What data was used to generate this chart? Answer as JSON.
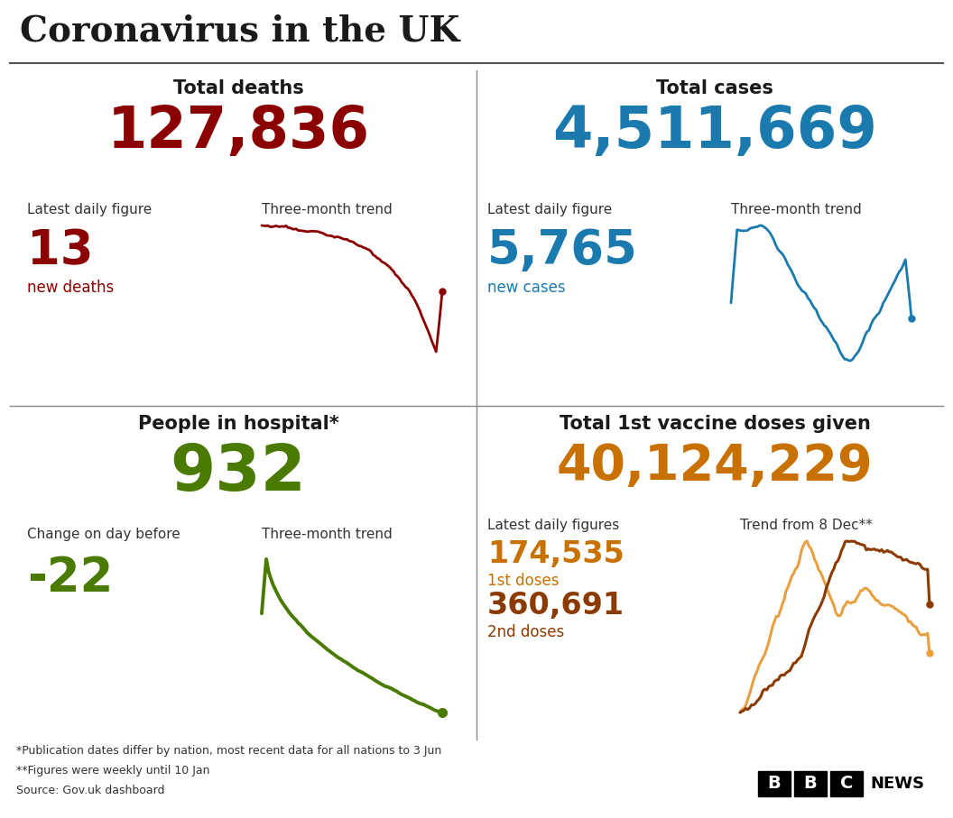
{
  "title": "Coronavirus in the UK",
  "bg_color": "#ffffff",
  "title_color": "#1a1a1a",
  "deaths_label": "Total deaths",
  "deaths_total": "127,836",
  "deaths_total_color": "#8b0000",
  "deaths_daily_label": "Latest daily figure",
  "deaths_daily_value": "13",
  "deaths_daily_sublabel": "new deaths",
  "deaths_daily_color": "#8b0000",
  "deaths_trend_label": "Three-month trend",
  "cases_label": "Total cases",
  "cases_total": "4,511,669",
  "cases_total_color": "#1a7aad",
  "cases_daily_label": "Latest daily figure",
  "cases_daily_value": "5,765",
  "cases_daily_sublabel": "new cases",
  "cases_daily_color": "#1a7aad",
  "cases_trend_label": "Three-month trend",
  "hosp_label": "People in hospital*",
  "hosp_total": "932",
  "hosp_total_color": "#4a7a00",
  "hosp_change_label": "Change on day before",
  "hosp_change_value": "-22",
  "hosp_change_color": "#4a7a00",
  "hosp_trend_label": "Three-month trend",
  "vacc_label": "Total 1st vaccine doses given",
  "vacc_total": "40,124,229",
  "vacc_total_color": "#c87000",
  "vacc_daily_label": "Latest daily figures",
  "vacc_1st_value": "174,535",
  "vacc_1st_sublabel": "1st doses",
  "vacc_1st_color": "#c87000",
  "vacc_2nd_value": "360,691",
  "vacc_2nd_sublabel": "2nd doses",
  "vacc_2nd_color": "#8b3a00",
  "vacc_trend_label": "Trend from 8 Dec**",
  "footnote1": "*Publication dates differ by nation, most recent data for all nations to 3 Jun",
  "footnote2": "**Figures were weekly until 10 Jan",
  "footnote3": "Source: Gov.uk dashboard",
  "line_color_deaths": "#8b0000",
  "line_color_cases": "#1a7aad",
  "line_color_hosp": "#4a7a00",
  "line_color_vacc1": "#e8a040",
  "line_color_vacc2": "#8b3a00",
  "divider_color": "#888888",
  "title_rule_color": "#555555"
}
